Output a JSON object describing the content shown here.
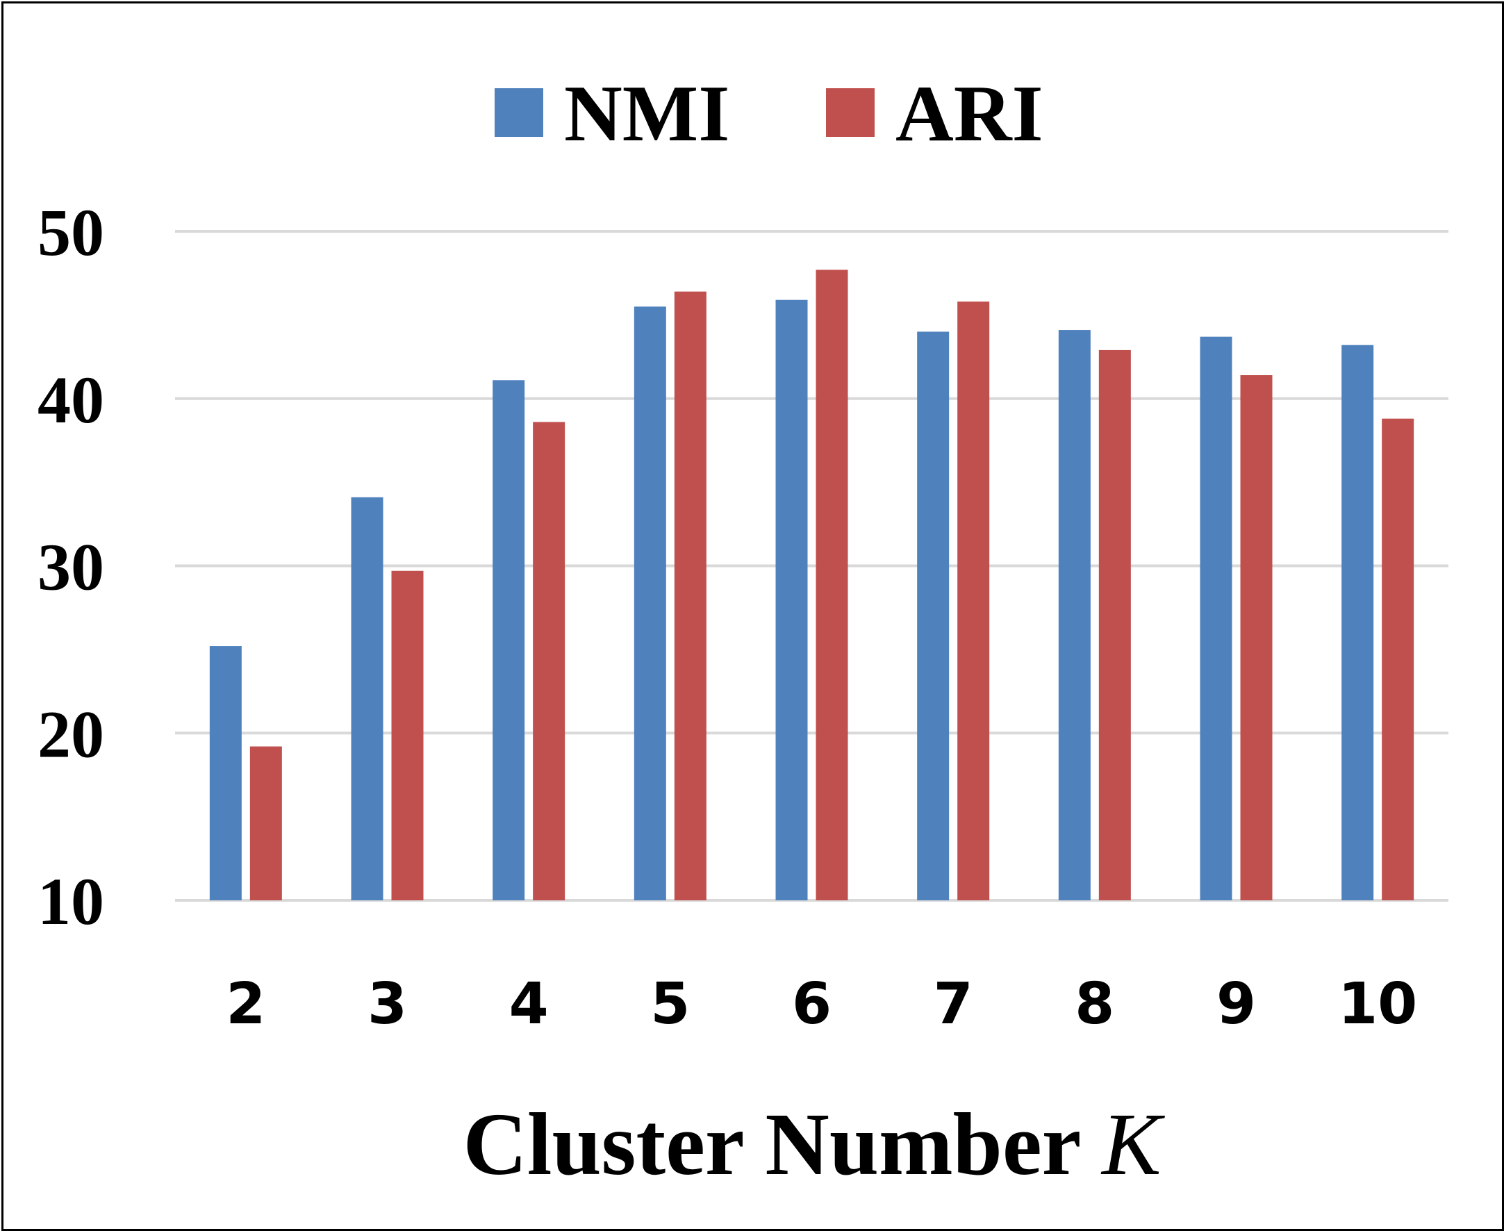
{
  "chart_data": {
    "type": "bar",
    "categories": [
      "2",
      "3",
      "4",
      "5",
      "6",
      "7",
      "8",
      "9",
      "10"
    ],
    "series": [
      {
        "name": "NMI",
        "color": "#4f81bd",
        "values": [
          25.2,
          34.1,
          41.1,
          45.5,
          45.9,
          44.0,
          44.1,
          43.7,
          43.2
        ]
      },
      {
        "name": "ARI",
        "color": "#c0504d",
        "values": [
          19.2,
          29.7,
          38.6,
          46.4,
          47.7,
          45.8,
          42.9,
          41.4,
          38.8
        ]
      }
    ],
    "xlabel": "Cluster Number",
    "xlabel_variable": "K",
    "ylabel": "",
    "ylim": [
      10,
      50
    ],
    "yticks": [
      "10",
      "20",
      "30",
      "40",
      "50"
    ],
    "grid": true,
    "legend_position": "top-center"
  }
}
